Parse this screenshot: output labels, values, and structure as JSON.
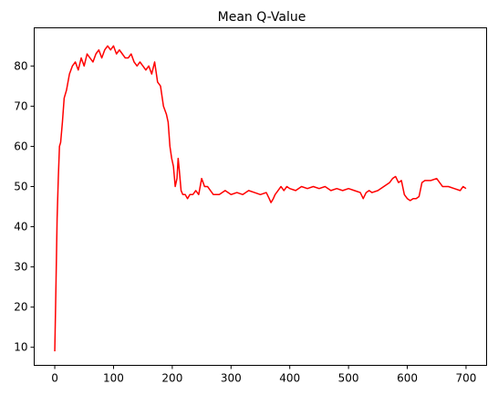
{
  "chart_data": {
    "type": "line",
    "title": "Mean Q-Value",
    "xlabel": "",
    "ylabel": "",
    "xlim": [
      -35,
      735
    ],
    "ylim": [
      5.5,
      89.5
    ],
    "xticks": [
      0,
      100,
      200,
      300,
      400,
      500,
      600,
      700
    ],
    "yticks": [
      10,
      20,
      30,
      40,
      50,
      60,
      70,
      80
    ],
    "grid": false,
    "series": [
      {
        "name": "Mean Q-Value",
        "color": "#ff0000",
        "x": [
          0,
          2,
          4,
          6,
          8,
          10,
          13,
          16,
          20,
          25,
          30,
          35,
          40,
          45,
          50,
          55,
          60,
          65,
          70,
          75,
          80,
          85,
          90,
          95,
          100,
          105,
          110,
          115,
          120,
          125,
          130,
          135,
          140,
          145,
          150,
          155,
          160,
          165,
          170,
          175,
          180,
          185,
          190,
          193,
          196,
          199,
          202,
          205,
          208,
          210,
          212,
          215,
          218,
          222,
          226,
          230,
          235,
          240,
          245,
          250,
          255,
          260,
          265,
          270,
          280,
          290,
          300,
          310,
          320,
          330,
          340,
          350,
          360,
          365,
          368,
          372,
          375,
          380,
          385,
          390,
          395,
          400,
          410,
          420,
          430,
          440,
          450,
          460,
          470,
          480,
          490,
          500,
          510,
          520,
          525,
          530,
          535,
          540,
          550,
          560,
          570,
          575,
          580,
          585,
          590,
          595,
          600,
          605,
          610,
          615,
          620,
          625,
          630,
          640,
          650,
          660,
          670,
          680,
          690,
          695,
          700
        ],
        "y": [
          9,
          25,
          42,
          52,
          60,
          61,
          66,
          72,
          74,
          78,
          80,
          81,
          79,
          82,
          80,
          83,
          82,
          81,
          83,
          84,
          82,
          84,
          85,
          84,
          85,
          83,
          84,
          83,
          82,
          82,
          83,
          81,
          80,
          81,
          80,
          79,
          80,
          78,
          81,
          76,
          75,
          70,
          68,
          66,
          60,
          57,
          55,
          50,
          52,
          57,
          54,
          49,
          48,
          48,
          47,
          48,
          48,
          49,
          48,
          52,
          50,
          50,
          49,
          48,
          48,
          49,
          48,
          48.5,
          48,
          49,
          48.5,
          48,
          48.5,
          47,
          46,
          47,
          48,
          49,
          50,
          49,
          50,
          49.5,
          49,
          50,
          49.5,
          50,
          49.5,
          50,
          49,
          49.5,
          49,
          49.5,
          49,
          48.5,
          47,
          48.5,
          49,
          48.5,
          49,
          50,
          51,
          52,
          52.5,
          51,
          51.5,
          48,
          47,
          46.5,
          47,
          47,
          47.5,
          51,
          51.5,
          51.5,
          52,
          50,
          50,
          49.5,
          49,
          50,
          49.5
        ]
      }
    ]
  }
}
